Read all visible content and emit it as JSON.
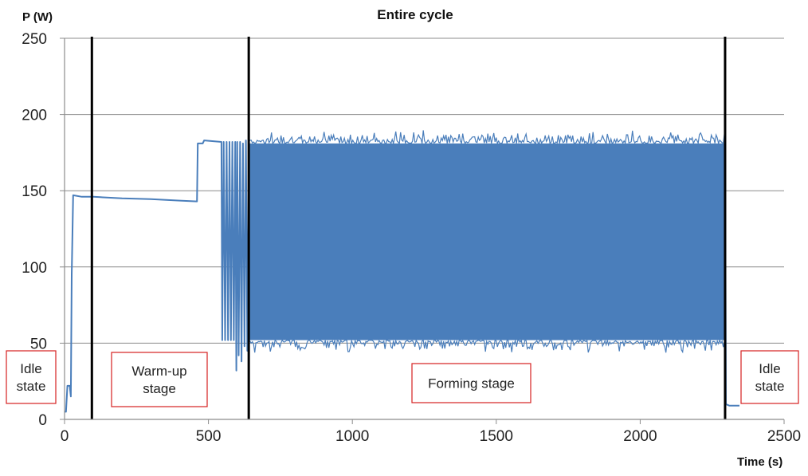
{
  "chart_data": {
    "type": "line",
    "title": "Entire cycle",
    "ylabel": "P (W)",
    "xlabel": "Time (s)",
    "xlim": [
      0,
      2500
    ],
    "ylim": [
      0,
      250
    ],
    "x_ticks": [
      0,
      500,
      1000,
      1500,
      2000,
      2500
    ],
    "y_ticks": [
      0,
      50,
      100,
      150,
      200,
      250
    ],
    "grid": "horizontal",
    "series_color": "#4a7ebb",
    "series": [
      {
        "values": [
          [
            0,
            5
          ],
          [
            5,
            5
          ],
          [
            10,
            22
          ],
          [
            18,
            22
          ],
          [
            22,
            15
          ],
          [
            25,
            95
          ],
          [
            30,
            147
          ],
          [
            60,
            146
          ],
          [
            100,
            146
          ],
          [
            200,
            145
          ],
          [
            300,
            144.5
          ],
          [
            400,
            143.5
          ],
          [
            460,
            143
          ],
          [
            463,
            181
          ],
          [
            480,
            181
          ],
          [
            485,
            183
          ],
          [
            545,
            182
          ],
          [
            548,
            52
          ],
          [
            553,
            182
          ],
          [
            558,
            52
          ],
          [
            563,
            182
          ],
          [
            568,
            52
          ],
          [
            573,
            182
          ],
          [
            578,
            52
          ],
          [
            583,
            182
          ],
          [
            588,
            52
          ],
          [
            593,
            182
          ],
          [
            597,
            32
          ],
          [
            600,
            182
          ],
          [
            605,
            42
          ],
          [
            610,
            182
          ],
          [
            615,
            38
          ],
          [
            620,
            181
          ],
          [
            625,
            48
          ],
          [
            630,
            183
          ],
          [
            635,
            45
          ],
          [
            640,
            182
          ]
        ]
      },
      {
        "band": {
          "x_start": 640,
          "x_end": 2295,
          "min": 52,
          "max": 181,
          "spike_max": 190,
          "spike_min": 43
        }
      },
      {
        "values": [
          [
            2295,
            184
          ],
          [
            2298,
            10
          ],
          [
            2310,
            9
          ],
          [
            2345,
            9
          ]
        ]
      }
    ],
    "stage_boundaries_x": [
      95,
      640,
      2295
    ],
    "annotations": [
      {
        "text": "Idle\nstate"
      },
      {
        "text": "Warm-up\nstage"
      },
      {
        "text": "Forming stage"
      },
      {
        "text": "Idle\nstate"
      }
    ]
  }
}
